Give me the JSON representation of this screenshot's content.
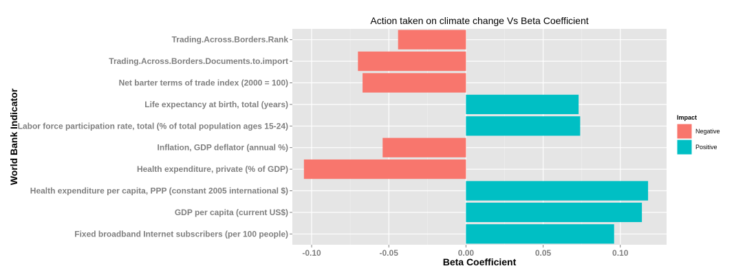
{
  "chart_data": {
    "type": "bar",
    "orientation": "horizontal",
    "title": "Action taken on climate change Vs Beta Coefficient",
    "xlabel": "Beta Coefficient",
    "ylabel": "World Bank Indicator",
    "xlim": [
      -0.1125,
      0.13
    ],
    "x_ticks": [
      -0.1,
      -0.05,
      0.0,
      0.05,
      0.1
    ],
    "x_tick_labels": [
      "-0.10",
      "-0.05",
      "0.00",
      "0.05",
      "0.10"
    ],
    "grid": true,
    "legend": {
      "title": "Impact",
      "placement": "right",
      "entries": [
        {
          "name": "Negative",
          "color": "#F8766D"
        },
        {
          "name": "Positive",
          "color": "#00BFC4"
        }
      ]
    },
    "categories": [
      "Trading.Across.Borders.Rank",
      "Trading.Across.Borders.Documents.to.import",
      "Net barter terms of trade index (2000 = 100)",
      "Life expectancy at birth, total (years)",
      "Labor force participation rate, total (% of total population ages 15-24)",
      "Inflation, GDP deflator (annual %)",
      "Health expenditure, private (% of GDP)",
      "Health expenditure per capita, PPP (constant 2005 international $)",
      "GDP per capita (current US$)",
      "Fixed broadband Internet subscribers (per 100 people)"
    ],
    "values": [
      -0.044,
      -0.07,
      -0.067,
      0.073,
      0.074,
      -0.054,
      -0.105,
      0.118,
      0.114,
      0.096
    ],
    "impact": [
      "Negative",
      "Negative",
      "Negative",
      "Positive",
      "Positive",
      "Negative",
      "Negative",
      "Positive",
      "Positive",
      "Positive"
    ]
  }
}
